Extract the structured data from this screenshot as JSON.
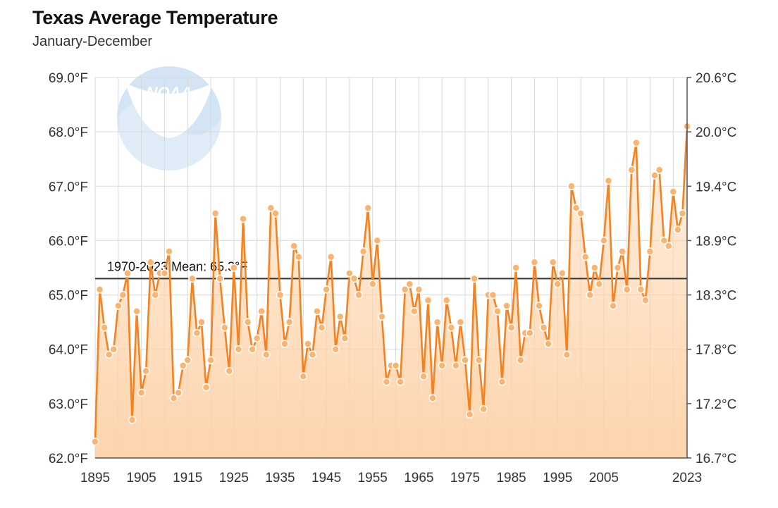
{
  "chart_data": {
    "type": "line",
    "title": "Texas Average Temperature",
    "subtitle": "January-December",
    "logo_text": "NOAA",
    "xlabel": "",
    "ylabel": "",
    "x_range": [
      1895,
      2023
    ],
    "ylim": [
      62.0,
      69.0
    ],
    "x_ticks": [
      {
        "value": 1895,
        "label": "1895"
      },
      {
        "value": 1905,
        "label": "1905"
      },
      {
        "value": 1915,
        "label": "1915"
      },
      {
        "value": 1925,
        "label": "1925"
      },
      {
        "value": 1935,
        "label": "1935"
      },
      {
        "value": 1945,
        "label": "1945"
      },
      {
        "value": 1955,
        "label": "1955"
      },
      {
        "value": 1965,
        "label": "1965"
      },
      {
        "value": 1975,
        "label": "1975"
      },
      {
        "value": 1985,
        "label": "1985"
      },
      {
        "value": 1995,
        "label": "1995"
      },
      {
        "value": 2005,
        "label": "2005"
      },
      {
        "value": 2023,
        "label": "2023"
      }
    ],
    "y_ticks_left": [
      {
        "value": 62.0,
        "label": "62.0°F"
      },
      {
        "value": 63.0,
        "label": "63.0°F"
      },
      {
        "value": 64.0,
        "label": "64.0°F"
      },
      {
        "value": 65.0,
        "label": "65.0°F"
      },
      {
        "value": 66.0,
        "label": "66.0°F"
      },
      {
        "value": 67.0,
        "label": "67.0°F"
      },
      {
        "value": 68.0,
        "label": "68.0°F"
      },
      {
        "value": 69.0,
        "label": "69.0°F"
      }
    ],
    "y_ticks_right": [
      {
        "value": 62.0,
        "label": "16.7°C"
      },
      {
        "value": 63.0,
        "label": "17.2°C"
      },
      {
        "value": 64.0,
        "label": "17.8°C"
      },
      {
        "value": 65.0,
        "label": "18.3°C"
      },
      {
        "value": 66.0,
        "label": "18.9°C"
      },
      {
        "value": 67.0,
        "label": "19.4°C"
      },
      {
        "value": 68.0,
        "label": "20.0°C"
      },
      {
        "value": 69.0,
        "label": "20.6°C"
      }
    ],
    "grid": true,
    "mean": {
      "value": 65.3,
      "label": "1970-2023 Mean: 65.3°F"
    },
    "series": [
      {
        "name": "Texas Average Temperature",
        "color": "#f58220",
        "fill_color": "#fdd2a8",
        "x": [
          1895,
          1896,
          1897,
          1898,
          1899,
          1900,
          1901,
          1902,
          1903,
          1904,
          1905,
          1906,
          1907,
          1908,
          1909,
          1910,
          1911,
          1912,
          1913,
          1914,
          1915,
          1916,
          1917,
          1918,
          1919,
          1920,
          1921,
          1922,
          1923,
          1924,
          1925,
          1926,
          1927,
          1928,
          1929,
          1930,
          1931,
          1932,
          1933,
          1934,
          1935,
          1936,
          1937,
          1938,
          1939,
          1940,
          1941,
          1942,
          1943,
          1944,
          1945,
          1946,
          1947,
          1948,
          1949,
          1950,
          1951,
          1952,
          1953,
          1954,
          1955,
          1956,
          1957,
          1958,
          1959,
          1960,
          1961,
          1962,
          1963,
          1964,
          1965,
          1966,
          1967,
          1968,
          1969,
          1970,
          1971,
          1972,
          1973,
          1974,
          1975,
          1976,
          1977,
          1978,
          1979,
          1980,
          1981,
          1982,
          1983,
          1984,
          1985,
          1986,
          1987,
          1988,
          1989,
          1990,
          1991,
          1992,
          1993,
          1994,
          1995,
          1996,
          1997,
          1998,
          1999,
          2000,
          2001,
          2002,
          2003,
          2004,
          2005,
          2006,
          2007,
          2008,
          2009,
          2010,
          2011,
          2012,
          2013,
          2014,
          2015,
          2016,
          2017,
          2018,
          2019,
          2020,
          2021,
          2022,
          2023
        ],
        "values": [
          62.3,
          65.1,
          64.4,
          63.9,
          64.0,
          64.8,
          65.0,
          65.4,
          62.7,
          64.7,
          63.2,
          63.6,
          65.6,
          65.0,
          65.4,
          65.4,
          65.8,
          63.1,
          63.2,
          63.7,
          63.8,
          65.3,
          64.3,
          64.5,
          63.3,
          63.8,
          66.5,
          65.3,
          64.4,
          63.6,
          65.5,
          64.0,
          66.4,
          64.5,
          64.0,
          64.2,
          64.7,
          63.9,
          66.6,
          66.5,
          65.0,
          64.1,
          64.5,
          65.9,
          65.7,
          63.5,
          64.1,
          63.9,
          64.7,
          64.4,
          65.1,
          65.7,
          64.0,
          64.6,
          64.2,
          65.4,
          65.3,
          65.0,
          65.8,
          66.6,
          65.2,
          66.0,
          64.6,
          63.4,
          63.7,
          63.7,
          63.4,
          65.1,
          65.2,
          64.7,
          65.1,
          63.5,
          64.9,
          63.1,
          64.5,
          63.7,
          64.9,
          64.4,
          63.7,
          64.5,
          63.8,
          62.8,
          65.3,
          63.8,
          62.9,
          65.0,
          65.0,
          64.7,
          63.4,
          64.8,
          64.4,
          65.5,
          63.8,
          64.3,
          64.3,
          65.6,
          64.8,
          64.4,
          64.1,
          65.6,
          65.2,
          65.4,
          63.9,
          67.0,
          66.6,
          66.5,
          65.7,
          65.0,
          65.5,
          65.2,
          66.0,
          67.1,
          64.8,
          65.5,
          65.8,
          65.1,
          67.3,
          67.8,
          65.1,
          64.9,
          65.8,
          67.2,
          67.3,
          66.0,
          65.9,
          66.9,
          66.2,
          66.5,
          68.1
        ]
      }
    ]
  }
}
